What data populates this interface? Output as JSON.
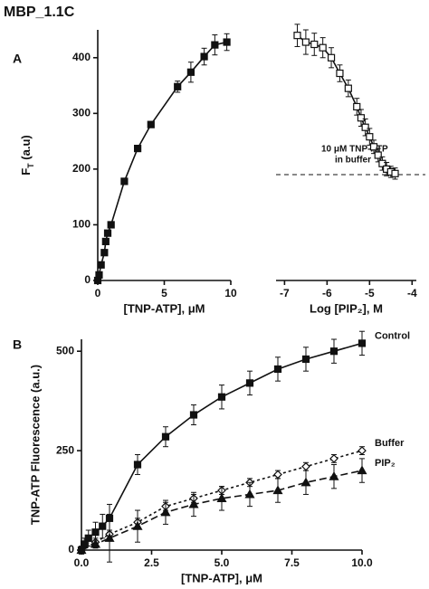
{
  "title": "MBP_1.1C",
  "chart_data": [
    {
      "type": "scatter",
      "panel": "A",
      "xlabel": "[TNP-ATP], μM",
      "ylabel": {
        "text": "F",
        "sub": "T",
        "tail": " (a.u)"
      },
      "xlim": [
        0,
        10
      ],
      "ylim": [
        0,
        450
      ],
      "xticks": [
        0,
        5,
        10
      ],
      "yticks": [
        0,
        100,
        200,
        300,
        400
      ],
      "series": [
        {
          "color": "#111111",
          "marker": "square",
          "filled": true,
          "x": [
            0,
            0.1,
            0.25,
            0.5,
            0.6,
            0.75,
            1,
            2,
            3,
            4,
            6,
            7,
            8,
            8.8,
            9.7
          ],
          "values": [
            0,
            10,
            28,
            50,
            70,
            85,
            100,
            178,
            237,
            280,
            348,
            374,
            402,
            423,
            428
          ],
          "errors": [
            0,
            0,
            0,
            0,
            0,
            0,
            0,
            0,
            0,
            0,
            10,
            18,
            15,
            18,
            15
          ]
        }
      ]
    },
    {
      "type": "scatter",
      "xlabel": "Log [PIP₂], M",
      "xlim": [
        -7.2,
        -3.9
      ],
      "ylim": [
        0,
        450
      ],
      "xticks": [
        -7,
        -6,
        -5,
        -4
      ],
      "baseline": 190,
      "annotation": [
        "10 μM TNP-ATP",
        "in buffer"
      ],
      "series": [
        {
          "color": "#111111",
          "marker": "square",
          "filled": false,
          "x": [
            -6.7,
            -6.5,
            -6.3,
            -6.1,
            -5.9,
            -5.7,
            -5.5,
            -5.3,
            -5.2,
            -5.1,
            -5.0,
            -4.9,
            -4.8,
            -4.7,
            -4.6,
            -4.5,
            -4.4
          ],
          "values": [
            440,
            428,
            424,
            418,
            400,
            372,
            345,
            312,
            292,
            275,
            258,
            240,
            225,
            210,
            200,
            195,
            192
          ],
          "errors": [
            20,
            22,
            20,
            18,
            18,
            15,
            15,
            15,
            15,
            15,
            15,
            12,
            12,
            12,
            12,
            10,
            10
          ]
        }
      ]
    },
    {
      "type": "scatter",
      "panel": "B",
      "xlabel": "[TNP-ATP], μM",
      "ylabel": "TNP-ATP Fluorescence (a.u.)",
      "xlim": [
        0,
        10
      ],
      "ylim": [
        0,
        530
      ],
      "xticks": [
        {
          "value": 0,
          "label": "0.0"
        },
        {
          "value": 2.5,
          "label": "2.5"
        },
        {
          "value": 5,
          "label": "5.0"
        },
        {
          "value": 7.5,
          "label": "7.5"
        },
        {
          "value": 10,
          "label": "10.0"
        }
      ],
      "yticks": [
        0,
        250,
        500
      ],
      "series": [
        {
          "name": "Control",
          "color": "#111111",
          "marker": "square",
          "filled": true,
          "dash": "none",
          "x": [
            0,
            0.1,
            0.25,
            0.5,
            0.75,
            1,
            2,
            3,
            4,
            5,
            6,
            7,
            8,
            9,
            10
          ],
          "values": [
            0,
            15,
            30,
            45,
            60,
            80,
            215,
            285,
            340,
            385,
            420,
            455,
            480,
            500,
            520
          ],
          "errors": [
            10,
            15,
            20,
            25,
            30,
            35,
            25,
            25,
            25,
            30,
            30,
            30,
            30,
            30,
            30
          ]
        },
        {
          "name": "Buffer",
          "color": "#111111",
          "marker": "diamond",
          "filled": false,
          "dash": "3,3",
          "x": [
            0,
            0.5,
            1,
            2,
            3,
            4,
            5,
            6,
            7,
            8,
            9,
            10
          ],
          "values": [
            0,
            20,
            40,
            70,
            110,
            130,
            150,
            170,
            190,
            210,
            230,
            250
          ],
          "errors": [
            5,
            10,
            10,
            10,
            10,
            10,
            10,
            10,
            10,
            10,
            10,
            10
          ]
        },
        {
          "name": "PIP₂",
          "color": "#111111",
          "marker": "triangle",
          "filled": true,
          "dash": "8,4",
          "x": [
            0,
            0.5,
            1,
            2,
            3,
            4,
            5,
            6,
            7,
            8,
            9,
            10
          ],
          "values": [
            0,
            15,
            30,
            60,
            95,
            115,
            130,
            140,
            150,
            170,
            185,
            200
          ],
          "errors": [
            5,
            10,
            60,
            40,
            30,
            30,
            30,
            30,
            30,
            30,
            30,
            30
          ]
        }
      ]
    }
  ]
}
